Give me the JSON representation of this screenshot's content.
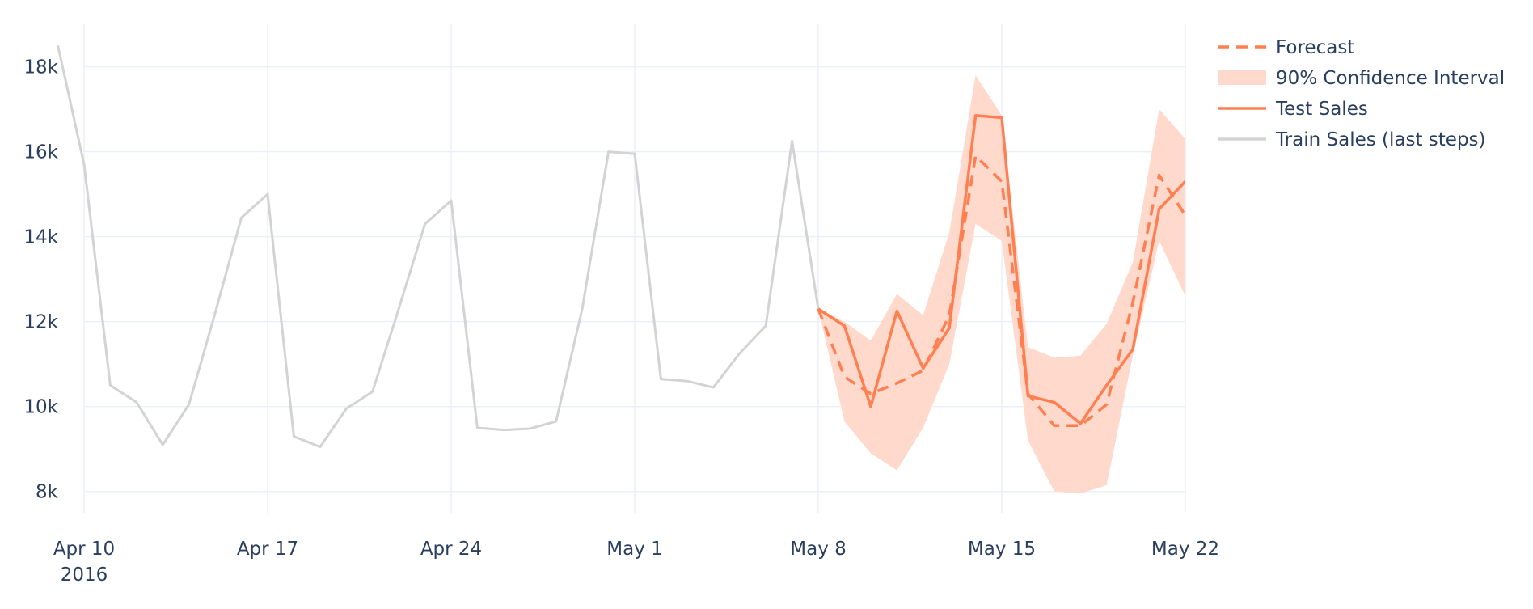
{
  "chart_data": {
    "type": "line",
    "title": "",
    "xlabel": "",
    "ylabel": "",
    "x_ticks": [
      {
        "date": "2016-04-10",
        "label": "Apr 10",
        "sublabel": "2016"
      },
      {
        "date": "2016-04-17",
        "label": "Apr 17",
        "sublabel": ""
      },
      {
        "date": "2016-04-24",
        "label": "Apr 24",
        "sublabel": ""
      },
      {
        "date": "2016-05-01",
        "label": "May 1",
        "sublabel": ""
      },
      {
        "date": "2016-05-08",
        "label": "May 8",
        "sublabel": ""
      },
      {
        "date": "2016-05-15",
        "label": "May 15",
        "sublabel": ""
      },
      {
        "date": "2016-05-22",
        "label": "May 22",
        "sublabel": ""
      }
    ],
    "y_ticks": [
      {
        "value": 8000,
        "label": "8k"
      },
      {
        "value": 10000,
        "label": "10k"
      },
      {
        "value": 12000,
        "label": "12k"
      },
      {
        "value": 14000,
        "label": "14k"
      },
      {
        "value": 16000,
        "label": "16k"
      },
      {
        "value": 18000,
        "label": "18k"
      }
    ],
    "xlim": [
      "2016-04-10",
      "2016-05-22"
    ],
    "ylim": [
      7500,
      19000
    ],
    "grid": true,
    "legend_position": "top-right",
    "colors": {
      "forecast": "#ff7f50",
      "interval": "#ffd9cc",
      "test": "#ff7f50",
      "train": "#d3d3d3",
      "grid": "#ebf0f8",
      "text": "#2a3f5f"
    },
    "legend": [
      {
        "name": "Forecast",
        "style": "dash",
        "key": "forecast"
      },
      {
        "name": "90% Confidence Interval",
        "style": "band",
        "key": "interval"
      },
      {
        "name": "Test Sales",
        "style": "solid",
        "key": "test"
      },
      {
        "name": "Train Sales (last steps)",
        "style": "solid",
        "key": "train"
      }
    ],
    "series": {
      "train": {
        "name": "Train Sales (last steps)",
        "x": [
          "2016-04-09",
          "2016-04-10",
          "2016-04-11",
          "2016-04-12",
          "2016-04-13",
          "2016-04-14",
          "2016-04-15",
          "2016-04-16",
          "2016-04-17",
          "2016-04-18",
          "2016-04-19",
          "2016-04-20",
          "2016-04-21",
          "2016-04-22",
          "2016-04-23",
          "2016-04-24",
          "2016-04-25",
          "2016-04-26",
          "2016-04-27",
          "2016-04-28",
          "2016-04-29",
          "2016-04-30",
          "2016-05-01",
          "2016-05-02",
          "2016-05-03",
          "2016-05-04",
          "2016-05-05",
          "2016-05-06",
          "2016-05-07",
          "2016-05-08"
        ],
        "y": [
          18500,
          15700,
          10500,
          10100,
          9100,
          10050,
          12200,
          14450,
          15000,
          9300,
          9050,
          9950,
          10350,
          12300,
          14300,
          14850,
          9500,
          9450,
          9480,
          9650,
          12300,
          16000,
          15950,
          10650,
          10600,
          10450,
          11250,
          11900,
          16250,
          12300
        ]
      },
      "test": {
        "name": "Test Sales",
        "x": [
          "2016-05-08",
          "2016-05-09",
          "2016-05-10",
          "2016-05-11",
          "2016-05-12",
          "2016-05-13",
          "2016-05-14",
          "2016-05-15",
          "2016-05-16",
          "2016-05-17",
          "2016-05-18",
          "2016-05-19",
          "2016-05-20",
          "2016-05-21",
          "2016-05-22"
        ],
        "y": [
          12300,
          11900,
          10000,
          12250,
          10900,
          11850,
          16850,
          16800,
          10250,
          10100,
          9600,
          10500,
          11350,
          14650,
          15300
        ]
      },
      "forecast": {
        "name": "Forecast",
        "x": [
          "2016-05-08",
          "2016-05-09",
          "2016-05-10",
          "2016-05-11",
          "2016-05-12",
          "2016-05-13",
          "2016-05-14",
          "2016-05-15",
          "2016-05-16",
          "2016-05-17",
          "2016-05-18",
          "2016-05-19",
          "2016-05-20",
          "2016-05-21",
          "2016-05-22"
        ],
        "y": [
          12300,
          10700,
          10300,
          10550,
          10850,
          12150,
          15900,
          15300,
          10300,
          9550,
          9550,
          10050,
          12450,
          15450,
          14500
        ]
      },
      "interval": {
        "name": "90% Confidence Interval",
        "x": [
          "2016-05-08",
          "2016-05-09",
          "2016-05-10",
          "2016-05-11",
          "2016-05-12",
          "2016-05-13",
          "2016-05-14",
          "2016-05-15",
          "2016-05-16",
          "2016-05-17",
          "2016-05-18",
          "2016-05-19",
          "2016-05-20",
          "2016-05-21",
          "2016-05-22"
        ],
        "upper": [
          12300,
          12000,
          11550,
          12650,
          12150,
          14100,
          17800,
          16850,
          11400,
          11150,
          11200,
          11950,
          13400,
          17000,
          16300
        ],
        "lower": [
          12300,
          9650,
          8900,
          8500,
          9500,
          11000,
          14300,
          13900,
          9200,
          8000,
          7950,
          8150,
          11200,
          13900,
          12600
        ]
      }
    }
  }
}
